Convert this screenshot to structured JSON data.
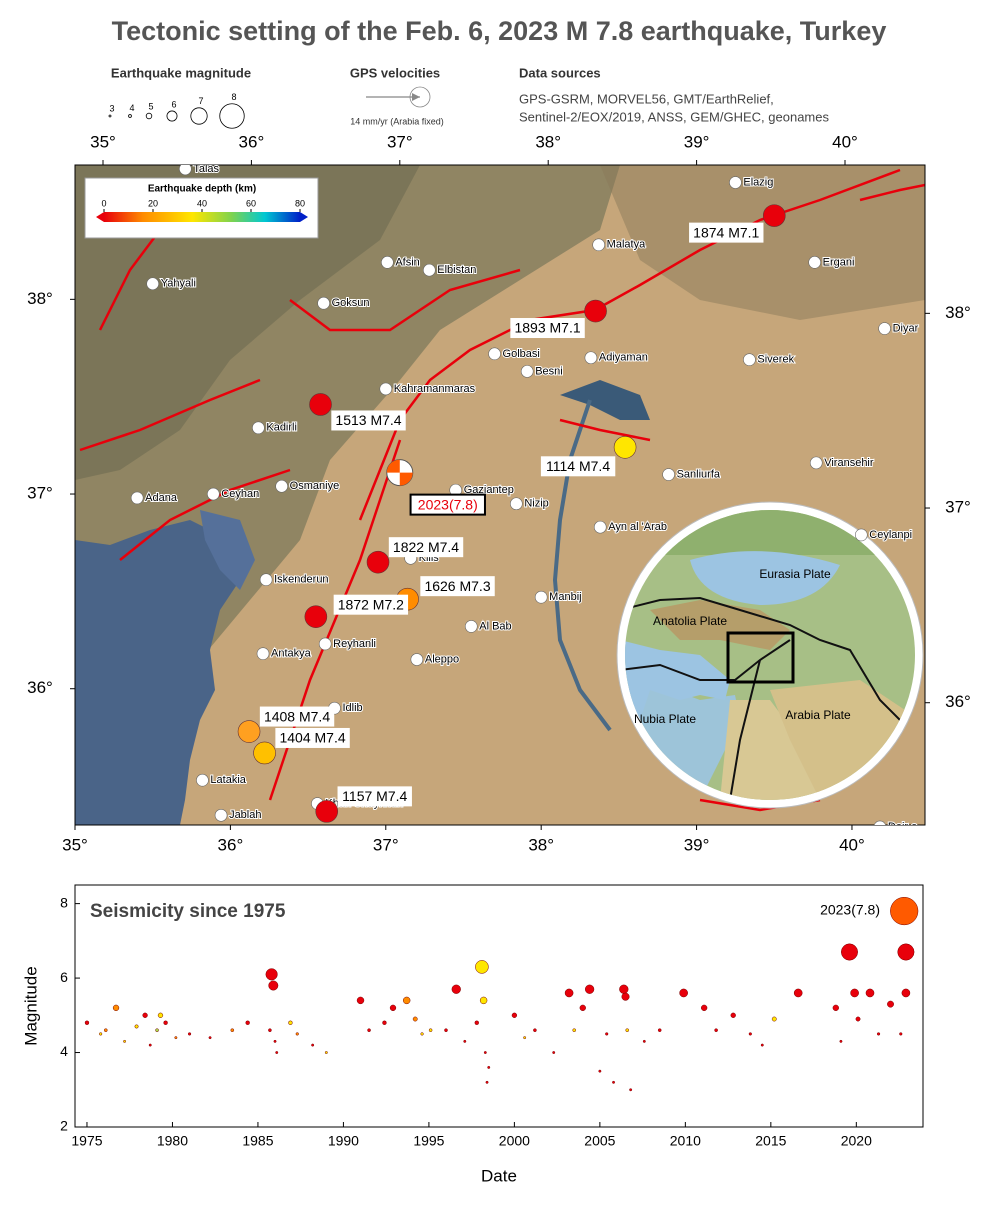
{
  "title": "Tectonic setting of the Feb. 6, 2023 M 7.8 earthquake, Turkey",
  "legend": {
    "magnitude": {
      "title": "Earthquake magnitude",
      "values": [
        3,
        4,
        5,
        6,
        7,
        8
      ]
    },
    "gps": {
      "title": "GPS velocities",
      "note": "14 mm/yr (Arabia fixed)"
    },
    "sources": {
      "title": "Data sources",
      "lines": [
        "GPS-GSRM, MORVEL56, GMT/EarthRelief,",
        "Sentinel-2/EOX/2019, ANSS, GEM/GHEC, geonames"
      ]
    },
    "depth": {
      "title": "Earthquake depth (km)",
      "lim": [
        0,
        80
      ],
      "ticks": [
        0,
        20,
        40,
        60,
        80
      ],
      "colors": [
        "#e8000b",
        "#ff8c00",
        "#ffe600",
        "#7fd34e",
        "#00c8d2",
        "#0020c8"
      ]
    }
  },
  "map": {
    "lonlim": [
      35,
      40.47
    ],
    "latlim": [
      35.3,
      38.69
    ],
    "lonticks": [
      {
        "value": 35,
        "label": "35°"
      },
      {
        "value": 36,
        "label": "36°"
      },
      {
        "value": 37,
        "label": "37°"
      },
      {
        "value": 38,
        "label": "38°"
      },
      {
        "value": 39,
        "label": "39°"
      },
      {
        "value": 40,
        "label": "40°"
      }
    ],
    "latticks": [
      {
        "value": 36,
        "label": "36°"
      },
      {
        "value": 37,
        "label": "37°"
      },
      {
        "value": 38,
        "label": "38°"
      }
    ],
    "cities": [
      {
        "name": "Talas",
        "lon": 35.71,
        "lat": 38.67
      },
      {
        "name": "Elazig",
        "lon": 39.25,
        "lat": 38.6
      },
      {
        "name": "Yahyali",
        "lon": 35.5,
        "lat": 38.08
      },
      {
        "name": "Afsin",
        "lon": 37.01,
        "lat": 38.19
      },
      {
        "name": "Elbistan",
        "lon": 37.28,
        "lat": 38.15
      },
      {
        "name": "Malatya",
        "lon": 38.37,
        "lat": 38.28
      },
      {
        "name": "Ergani",
        "lon": 39.76,
        "lat": 38.19
      },
      {
        "name": "Goksun",
        "lon": 36.6,
        "lat": 37.98
      },
      {
        "name": "Diyar",
        "lon": 40.21,
        "lat": 37.85
      },
      {
        "name": "Golbasi",
        "lon": 37.7,
        "lat": 37.72
      },
      {
        "name": "Adiyaman",
        "lon": 38.32,
        "lat": 37.7
      },
      {
        "name": "Siverek",
        "lon": 39.34,
        "lat": 37.69
      },
      {
        "name": "Besni",
        "lon": 37.91,
        "lat": 37.63
      },
      {
        "name": "Kahramanmaras",
        "lon": 37.0,
        "lat": 37.54
      },
      {
        "name": "Kadirli",
        "lon": 36.18,
        "lat": 37.34
      },
      {
        "name": "Sanliurfa",
        "lon": 38.82,
        "lat": 37.1
      },
      {
        "name": "Viransehir",
        "lon": 39.77,
        "lat": 37.16
      },
      {
        "name": "Osmaniye",
        "lon": 36.33,
        "lat": 37.04
      },
      {
        "name": "Ceyhan",
        "lon": 35.89,
        "lat": 37.0
      },
      {
        "name": "Adana",
        "lon": 35.4,
        "lat": 36.98
      },
      {
        "name": "Gaziantep",
        "lon": 37.45,
        "lat": 37.02
      },
      {
        "name": "Nizip",
        "lon": 37.84,
        "lat": 36.95
      },
      {
        "name": "Ayn al 'Arab",
        "lon": 38.38,
        "lat": 36.83
      },
      {
        "name": "Ceylanpi",
        "lon": 40.06,
        "lat": 36.79
      },
      {
        "name": "Kilis",
        "lon": 37.16,
        "lat": 36.67
      },
      {
        "name": "Iskenderun",
        "lon": 36.23,
        "lat": 36.56
      },
      {
        "name": "Manbij",
        "lon": 38.0,
        "lat": 36.47
      },
      {
        "name": "Al Bab",
        "lon": 37.55,
        "lat": 36.32
      },
      {
        "name": "Reyhanli",
        "lon": 36.61,
        "lat": 36.23
      },
      {
        "name": "Antakya",
        "lon": 36.21,
        "lat": 36.18
      },
      {
        "name": "Aleppo",
        "lon": 37.2,
        "lat": 36.15
      },
      {
        "name": "Idlib",
        "lon": 36.67,
        "lat": 35.9
      },
      {
        "name": "Latakia",
        "lon": 35.82,
        "lat": 35.53
      },
      {
        "name": "Jablah",
        "lon": 35.94,
        "lat": 35.35
      },
      {
        "name": "Khan Shaykhun",
        "lon": 36.56,
        "lat": 35.41
      },
      {
        "name": "Deir e",
        "lon": 40.18,
        "lat": 35.29
      }
    ],
    "quakes": [
      {
        "label": "1874 M7.1",
        "lon": 39.5,
        "lat": 38.43,
        "color": "#e8000b"
      },
      {
        "label": "1893 M7.1",
        "lon": 38.35,
        "lat": 37.94,
        "color": "#e8000b"
      },
      {
        "label": "1513 M7.4",
        "lon": 36.58,
        "lat": 37.46,
        "color": "#e8000b"
      },
      {
        "label": "1114 M7.4",
        "lon": 38.54,
        "lat": 37.24,
        "color": "#ffe600"
      },
      {
        "label": "2023(7.8)",
        "lon": 37.09,
        "lat": 37.11,
        "color": "#ff5a00"
      },
      {
        "label": "1822 M7.4",
        "lon": 36.95,
        "lat": 36.65,
        "color": "#e8000b"
      },
      {
        "label": "1626 M7.3",
        "lon": 37.14,
        "lat": 36.46,
        "color": "#ff8c00"
      },
      {
        "label": "1872 M7.2",
        "lon": 36.55,
        "lat": 36.37,
        "color": "#e8000b"
      },
      {
        "label": "1408 M7.4",
        "lon": 36.12,
        "lat": 35.78,
        "color": "#ffa020"
      },
      {
        "label": "1404 M7.4",
        "lon": 36.22,
        "lat": 35.67,
        "color": "#ffc000"
      },
      {
        "label": "1157 M7.4",
        "lon": 36.62,
        "lat": 35.37,
        "color": "#e8000b"
      }
    ],
    "inset": {
      "labels": [
        "Eurasia Plate",
        "Anatolia Plate",
        "Nubia Plate",
        "Arabia Plate"
      ]
    }
  },
  "chart_data": {
    "type": "scatter",
    "title": "Seismicity since 1975",
    "annotation": "2023(7.8)",
    "x_label": "Date",
    "y_label": "Magnitude",
    "xlim": [
      1974.3,
      2023.9
    ],
    "ylim": [
      2,
      8.5
    ],
    "xticks": [
      1975,
      1980,
      1985,
      1990,
      1995,
      2000,
      2005,
      2010,
      2015,
      2020
    ],
    "yticks": [
      2,
      4,
      6,
      8
    ],
    "x": [
      1975.0,
      1975.8,
      1976.1,
      1976.7,
      1977.2,
      1977.9,
      1978.4,
      1978.7,
      1979.1,
      1979.3,
      1979.6,
      1980.2,
      1981.0,
      1982.2,
      1983.5,
      1984.4,
      1985.8,
      1985.9,
      1985.7,
      1986.0,
      1986.1,
      1986.9,
      1987.3,
      1988.2,
      1989.0,
      1991.0,
      1991.5,
      1992.4,
      1992.9,
      1993.7,
      1994.2,
      1994.6,
      1995.1,
      1996.0,
      1996.6,
      1997.1,
      1997.8,
      1998.1,
      1998.2,
      1998.3,
      1998.5,
      1998.4,
      2000.0,
      2000.6,
      2001.2,
      2002.3,
      2003.2,
      2003.5,
      2004.0,
      2004.4,
      2005.0,
      2005.4,
      2005.8,
      2006.4,
      2006.5,
      2006.6,
      2006.8,
      2007.6,
      2008.5,
      2009.9,
      2011.1,
      2011.8,
      2012.8,
      2013.8,
      2014.5,
      2015.2,
      2016.6,
      2018.8,
      2019.1,
      2019.6,
      2019.9,
      2020.1,
      2020.8,
      2021.3,
      2022.0,
      2022.6,
      2022.9,
      2022.9,
      2022.8
    ],
    "values": [
      4.8,
      4.5,
      4.6,
      5.2,
      4.3,
      4.7,
      5.0,
      4.2,
      4.6,
      5.0,
      4.8,
      4.4,
      4.5,
      4.4,
      4.6,
      4.8,
      6.1,
      5.8,
      4.6,
      4.3,
      4.0,
      4.8,
      4.5,
      4.2,
      4.0,
      5.4,
      4.6,
      4.8,
      5.2,
      5.4,
      4.9,
      4.5,
      4.6,
      4.6,
      5.7,
      4.3,
      4.8,
      6.3,
      5.4,
      4.0,
      3.6,
      3.2,
      5.0,
      4.4,
      4.6,
      4.0,
      5.6,
      4.6,
      5.2,
      5.7,
      3.5,
      4.5,
      3.2,
      5.7,
      5.5,
      4.6,
      3.0,
      4.3,
      4.6,
      5.6,
      5.2,
      4.6,
      5.0,
      4.5,
      4.2,
      4.9,
      5.6,
      5.2,
      4.3,
      6.7,
      5.6,
      4.9,
      5.6,
      4.5,
      5.3,
      4.5,
      6.7,
      5.6,
      7.8
    ],
    "colors": [
      "#e8000b",
      "#ffe600",
      "#ff8c00",
      "#ff8c00",
      "#ffe600",
      "#ffe600",
      "#e8000b",
      "#e8000b",
      "#a8e04a",
      "#ffe600",
      "#e8000b",
      "#ff8c00",
      "#e8000b",
      "#e8000b",
      "#ff8c00",
      "#e8000b",
      "#e8000b",
      "#e8000b",
      "#e8000b",
      "#e8000b",
      "#e8000b",
      "#ffe600",
      "#ff8c00",
      "#e8000b",
      "#ffe600",
      "#e8000b",
      "#e8000b",
      "#e8000b",
      "#e8000b",
      "#ff8c00",
      "#ff8c00",
      "#ffe600",
      "#ffe600",
      "#e8000b",
      "#e8000b",
      "#e8000b",
      "#e8000b",
      "#ffe600",
      "#ffe600",
      "#e8000b",
      "#e8000b",
      "#e8000b",
      "#e8000b",
      "#ffe600",
      "#e8000b",
      "#e8000b",
      "#e8000b",
      "#ffe600",
      "#e8000b",
      "#e8000b",
      "#e8000b",
      "#e8000b",
      "#e8000b",
      "#e8000b",
      "#e8000b",
      "#ffe600",
      "#e8000b",
      "#e8000b",
      "#e8000b",
      "#e8000b",
      "#e8000b",
      "#e8000b",
      "#e8000b",
      "#e8000b",
      "#e8000b",
      "#ffe600",
      "#e8000b",
      "#e8000b",
      "#e8000b",
      "#e8000b",
      "#e8000b",
      "#e8000b",
      "#e8000b",
      "#e8000b",
      "#e8000b",
      "#e8000b",
      "#e8000b",
      "#e8000b",
      "#ff5a00"
    ]
  }
}
